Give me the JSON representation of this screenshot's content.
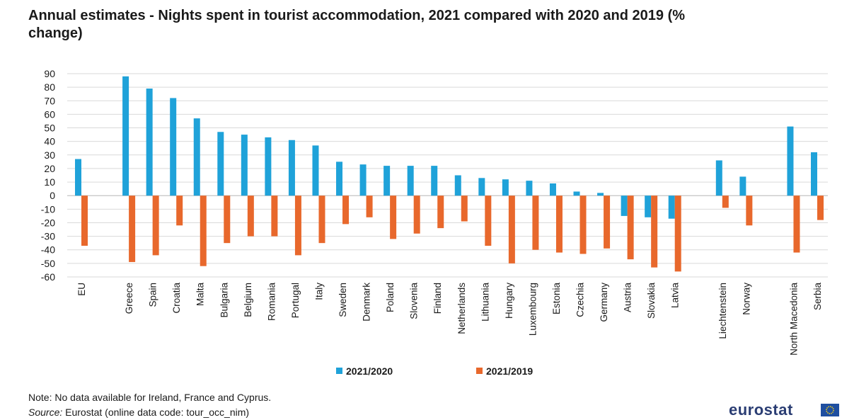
{
  "title": "Annual estimates - Nights spent in tourist accommodation, 2021 compared with 2020 and 2019 (% change)",
  "notes": {
    "note": "Note: No data available for Ireland, France and Cyprus.",
    "source_label": "Source:",
    "source_text": " Eurostat (online data code: tour_occ_nim)"
  },
  "logo": {
    "text": "eurostat",
    "flag_icon": "eu-flag-icon"
  },
  "chart_data": {
    "type": "bar",
    "title": "Annual estimates - Nights spent in tourist accommodation, 2021 compared with 2020 and 2019 (% change)",
    "xlabel": "",
    "ylabel": "",
    "ylim": [
      -60,
      90
    ],
    "yticks": [
      90,
      80,
      70,
      60,
      50,
      40,
      30,
      20,
      10,
      0,
      -10,
      -20,
      -30,
      -40,
      -50,
      -60
    ],
    "grid": true,
    "legend_position": "bottom",
    "categories": [
      "EU",
      "Greece",
      "Spain",
      "Croatia",
      "Malta",
      "Bulgaria",
      "Belgium",
      "Romania",
      "Portugal",
      "Italy",
      "Sweden",
      "Denmark",
      "Poland",
      "Slovenia",
      "Finland",
      "Netherlands",
      "Lithuania",
      "Hungary",
      "Luxembourg",
      "Estonia",
      "Czechia",
      "Germany",
      "Austria",
      "Slovakia",
      "Latvia",
      "Liechtenstein",
      "Norway",
      "North Macedonia",
      "Serbia"
    ],
    "groups_after": [
      0,
      24,
      26
    ],
    "series": [
      {
        "name": "2021/2020",
        "color": "#1fa2d9",
        "values": [
          27,
          88,
          79,
          72,
          57,
          47,
          45,
          43,
          41,
          37,
          25,
          23,
          22,
          22,
          22,
          15,
          13,
          12,
          11,
          9,
          3,
          2,
          -15,
          -16,
          -17,
          26,
          14,
          51,
          32
        ]
      },
      {
        "name": "2021/2019",
        "color": "#e8682c",
        "values": [
          -37,
          -49,
          -44,
          -22,
          -52,
          -35,
          -30,
          -30,
          -44,
          -35,
          -21,
          -16,
          -32,
          -28,
          -24,
          -19,
          -37,
          -50,
          -40,
          -42,
          -43,
          -39,
          -47,
          -53,
          -56,
          -9,
          -22,
          -42,
          -18
        ]
      }
    ]
  }
}
